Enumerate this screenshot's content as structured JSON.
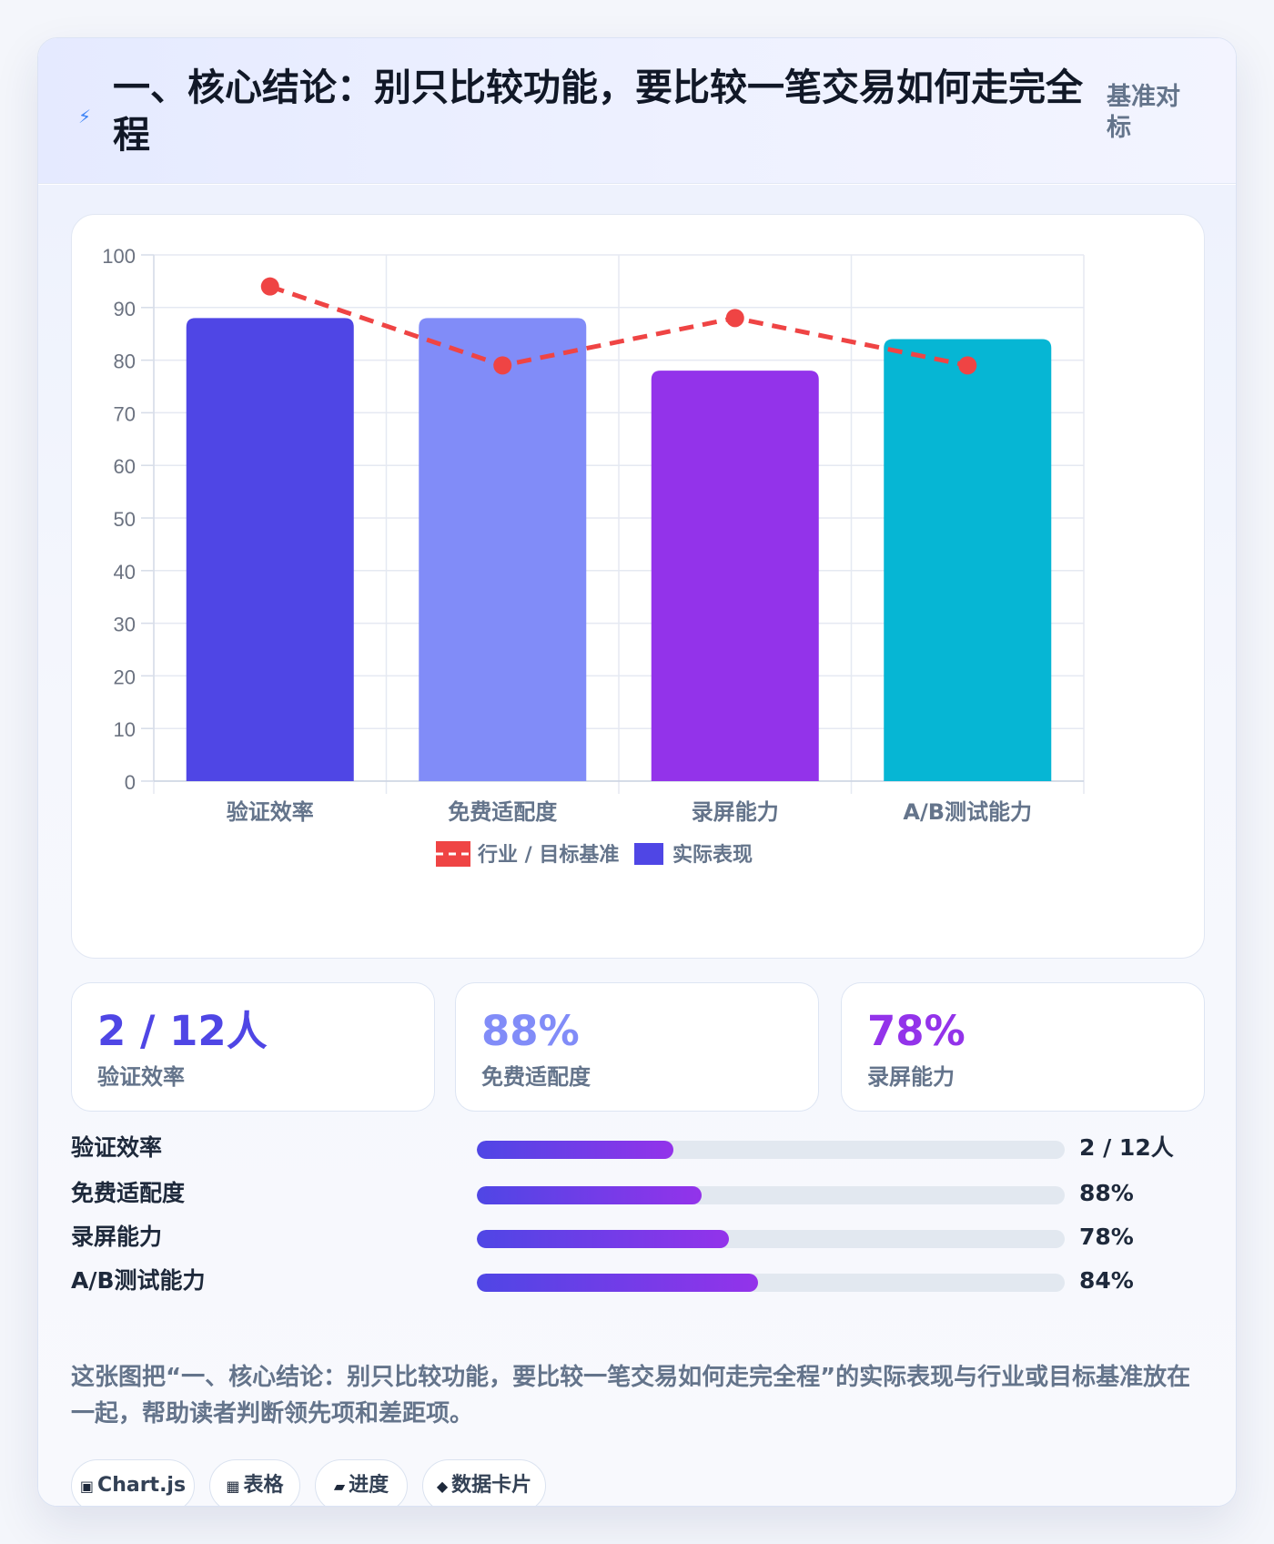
{
  "header": {
    "icon": "lightning-icon",
    "title": "一、核心结论：别只比较功能，要比较一笔交易如何走完全程",
    "badge": "基准对标"
  },
  "chart_data": {
    "type": "bar",
    "categories": [
      "验证效率",
      "免费适配度",
      "录屏能力",
      "A/B测试能力"
    ],
    "series": [
      {
        "name": "实际表现",
        "type": "bar",
        "values": [
          88,
          88,
          78,
          84
        ],
        "colors": [
          "#4f46e5",
          "#818cf8",
          "#9333ea",
          "#06b6d4"
        ]
      },
      {
        "name": "行业 / 目标基准",
        "type": "line",
        "style": "dashed",
        "color": "#ef4444",
        "values": [
          94,
          79,
          88,
          79
        ]
      }
    ],
    "yticks": [
      0,
      10,
      20,
      30,
      40,
      50,
      60,
      70,
      80,
      90,
      100
    ],
    "ylim": [
      0,
      100
    ],
    "grid": true,
    "legend_position": "bottom",
    "legend": [
      "行业 / 目标基准",
      "实际表现"
    ]
  },
  "stats": [
    {
      "value": "2 / 12人",
      "label": "验证效率",
      "color": "#4f46e5"
    },
    {
      "value": "88%",
      "label": "免费适配度",
      "color": "#818cf8"
    },
    {
      "value": "78%",
      "label": "录屏能力",
      "color": "#9333ea"
    }
  ],
  "progress": [
    {
      "label": "验证效率",
      "value": "2 / 12人",
      "fraction": 0.335
    },
    {
      "label": "免费适配度",
      "value": "88%",
      "fraction": 0.382
    },
    {
      "label": "录屏能力",
      "value": "78%",
      "fraction": 0.429
    },
    {
      "label": "A/B测试能力",
      "value": "84%",
      "fraction": 0.478
    }
  ],
  "description": "这张图把“一、核心结论：别只比较功能，要比较一笔交易如何走完全程”的实际表现与行业或目标基准放在一起，帮助读者判断领先项和差距项。",
  "tags": [
    {
      "icon": "chart-icon",
      "glyph": "▣",
      "label": "Chart.js"
    },
    {
      "icon": "table-icon",
      "glyph": "▦",
      "label": "表格"
    },
    {
      "icon": "progress-icon",
      "glyph": "▰",
      "label": "进度"
    },
    {
      "icon": "data-card-icon",
      "glyph": "◆",
      "label": "数据卡片"
    }
  ]
}
